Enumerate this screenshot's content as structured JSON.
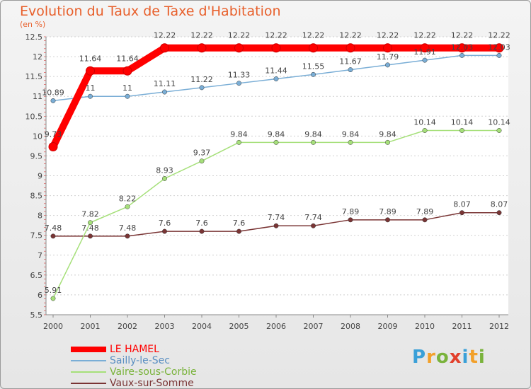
{
  "header": {
    "title": "Evolution du Taux de Taxe d'Habitation",
    "subtitle": "(en %)"
  },
  "logo": {
    "letters": [
      "P",
      "r",
      "o",
      "x",
      "i",
      "t",
      "i"
    ],
    "colors": [
      "#3aa0d8",
      "#f2a02a",
      "#7ab33c",
      "#e2402c",
      "#3aa0d8",
      "#f2a02a",
      "#7ab33c"
    ]
  },
  "chart_data": {
    "type": "line",
    "title": "Evolution du Taux de Taxe d'Habitation",
    "subtitle": "(en %)",
    "x": [
      "2000",
      "2001",
      "2002",
      "2003",
      "2004",
      "2005",
      "2006",
      "2007",
      "2008",
      "2009",
      "2010",
      "2011",
      "2012"
    ],
    "ylim": [
      5.5,
      12.5
    ],
    "yticks": [
      "5.5",
      "6",
      "6.5",
      "7",
      "7.5",
      "8",
      "8.5",
      "9",
      "9.5",
      "10",
      "10.5",
      "11",
      "11.5",
      "12",
      "12.5"
    ],
    "grid": "horizontal",
    "legend_position": "bottom-left",
    "series": [
      {
        "name": "LE HAMEL",
        "color": "#ff0000",
        "values": [
          9.73,
          11.64,
          11.64,
          12.22,
          12.22,
          12.22,
          12.22,
          12.22,
          12.22,
          12.22,
          12.22,
          12.22,
          12.22
        ],
        "labels": [
          "9.73",
          "11.64",
          "11.64",
          "12.22",
          "12.22",
          "12.22",
          "12.22",
          "12.22",
          "12.22",
          "12.22",
          "12.22",
          "12.22",
          "12.22"
        ]
      },
      {
        "name": "Sailly-le-Sec",
        "color": "#7aaed6",
        "values": [
          10.89,
          11,
          11,
          11.11,
          11.22,
          11.33,
          11.44,
          11.55,
          11.67,
          11.79,
          11.91,
          12.03,
          12.03
        ],
        "labels": [
          "10.89",
          "11",
          "11",
          "11.11",
          "11.22",
          "11.33",
          "11.44",
          "11.55",
          "11.67",
          "11.79",
          "11.91",
          "12.03",
          "12.03"
        ]
      },
      {
        "name": "Vaire-sous-Corbie",
        "color": "#a6e07a",
        "values": [
          5.91,
          7.82,
          8.22,
          8.93,
          9.37,
          9.84,
          9.84,
          9.84,
          9.84,
          9.84,
          10.14,
          10.14,
          10.14
        ],
        "labels": [
          "5.91",
          "7.82",
          "8.22",
          "8.93",
          "9.37",
          "9.84",
          "9.84",
          "9.84",
          "9.84",
          "9.84",
          "10.14",
          "10.14",
          "10.14"
        ]
      },
      {
        "name": "Vaux-sur-Somme",
        "color": "#7a3535",
        "values": [
          7.48,
          7.48,
          7.48,
          7.6,
          7.6,
          7.6,
          7.74,
          7.74,
          7.89,
          7.89,
          7.89,
          8.07,
          8.07
        ],
        "labels": [
          "7.48",
          "7.48",
          "7.48",
          "7.6",
          "7.6",
          "7.6",
          "7.74",
          "7.74",
          "7.89",
          "7.89",
          "7.89",
          "8.07",
          "8.07"
        ]
      }
    ]
  }
}
